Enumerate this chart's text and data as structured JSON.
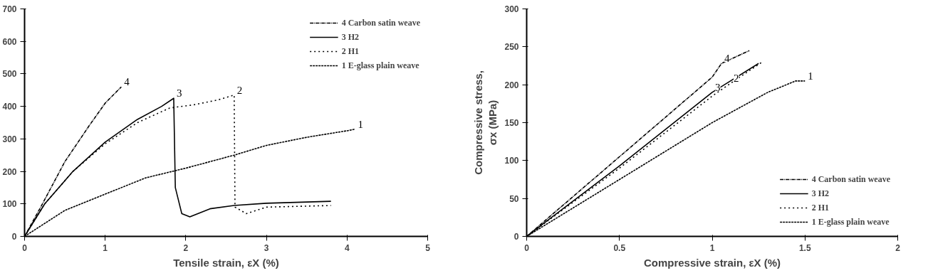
{
  "chart_data": [
    {
      "type": "line",
      "xlabel": "Tensile strain, εX (%)",
      "xlim": [
        0,
        5
      ],
      "ylim": [
        0,
        700
      ],
      "xticks": [
        0,
        1,
        2,
        3,
        4,
        5
      ],
      "yticks": [
        0,
        100,
        200,
        300,
        400,
        500,
        600,
        700
      ],
      "grid": false,
      "legend": "top right",
      "series": [
        {
          "name": "4 Carbon satin weave",
          "color": "#000000",
          "line_style": "dashdot",
          "x": [
            0,
            0.2,
            0.5,
            0.8,
            1.0,
            1.2
          ],
          "values": [
            0,
            90,
            230,
            340,
            410,
            460
          ]
        },
        {
          "name": "3 H2",
          "color": "#000000",
          "line_style": "solid",
          "x": [
            0,
            0.25,
            0.6,
            1.0,
            1.4,
            1.7,
            1.85,
            1.87,
            1.95,
            2.05,
            2.3,
            2.6,
            3.0,
            3.8
          ],
          "values": [
            0,
            100,
            200,
            290,
            360,
            400,
            425,
            150,
            70,
            60,
            85,
            95,
            102,
            108
          ]
        },
        {
          "name": "2 H1",
          "color": "#000000",
          "line_style": "dotted",
          "x": [
            0,
            0.25,
            0.6,
            1.0,
            1.4,
            1.8,
            2.1,
            2.4,
            2.6,
            2.61,
            2.75,
            3.0,
            3.8
          ],
          "values": [
            0,
            100,
            200,
            285,
            350,
            395,
            405,
            420,
            435,
            90,
            70,
            90,
            95
          ]
        },
        {
          "name": "1 E-glass plain weave",
          "color": "#000000",
          "line_style": "dashed",
          "x": [
            0,
            0.5,
            1.0,
            1.5,
            2.0,
            2.6,
            3.0,
            3.5,
            4.0,
            4.1
          ],
          "values": [
            0,
            80,
            130,
            180,
            210,
            250,
            280,
            305,
            325,
            330
          ]
        }
      ],
      "annotations": [
        {
          "text": "4",
          "x": 1.2,
          "y": 460
        },
        {
          "text": "3",
          "x": 1.85,
          "y": 425
        },
        {
          "text": "2",
          "x": 2.6,
          "y": 435
        },
        {
          "text": "1",
          "x": 4.1,
          "y": 330
        }
      ]
    },
    {
      "type": "line",
      "xlabel": "Compressive strain, εX (%)",
      "ylabel": "Compressive stress,\nσx (MPa)",
      "xlim": [
        0,
        2
      ],
      "ylim": [
        0,
        300
      ],
      "xticks": [
        0,
        0.5,
        1,
        1.5,
        2
      ],
      "yticks": [
        0,
        50,
        100,
        150,
        200,
        250,
        300
      ],
      "grid": false,
      "legend": "bottom right",
      "series": [
        {
          "name": "4 Carbon satin weave",
          "color": "#000000",
          "line_style": "dashdot",
          "x": [
            0,
            0.5,
            1.0,
            1.05,
            1.2
          ],
          "values": [
            0,
            105,
            210,
            228,
            245
          ]
        },
        {
          "name": "3 H2",
          "color": "#000000",
          "line_style": "solid",
          "x": [
            0,
            0.5,
            1.0,
            1.25
          ],
          "values": [
            0,
            93,
            190,
            228
          ]
        },
        {
          "name": "2 H1",
          "color": "#000000",
          "line_style": "dotted",
          "x": [
            0,
            0.5,
            1.0,
            1.1,
            1.27
          ],
          "values": [
            0,
            90,
            185,
            202,
            230
          ]
        },
        {
          "name": "1 E-glass plain weave",
          "color": "#000000",
          "line_style": "dashed",
          "x": [
            0,
            0.5,
            1.0,
            1.3,
            1.45,
            1.5
          ],
          "values": [
            0,
            75,
            150,
            190,
            205,
            205
          ]
        }
      ],
      "annotations": [
        {
          "text": "4",
          "x": 1.05,
          "y": 228
        },
        {
          "text": "3",
          "x": 1.0,
          "y": 190
        },
        {
          "text": "2",
          "x": 1.1,
          "y": 202
        },
        {
          "text": "1",
          "x": 1.5,
          "y": 205
        }
      ]
    }
  ]
}
